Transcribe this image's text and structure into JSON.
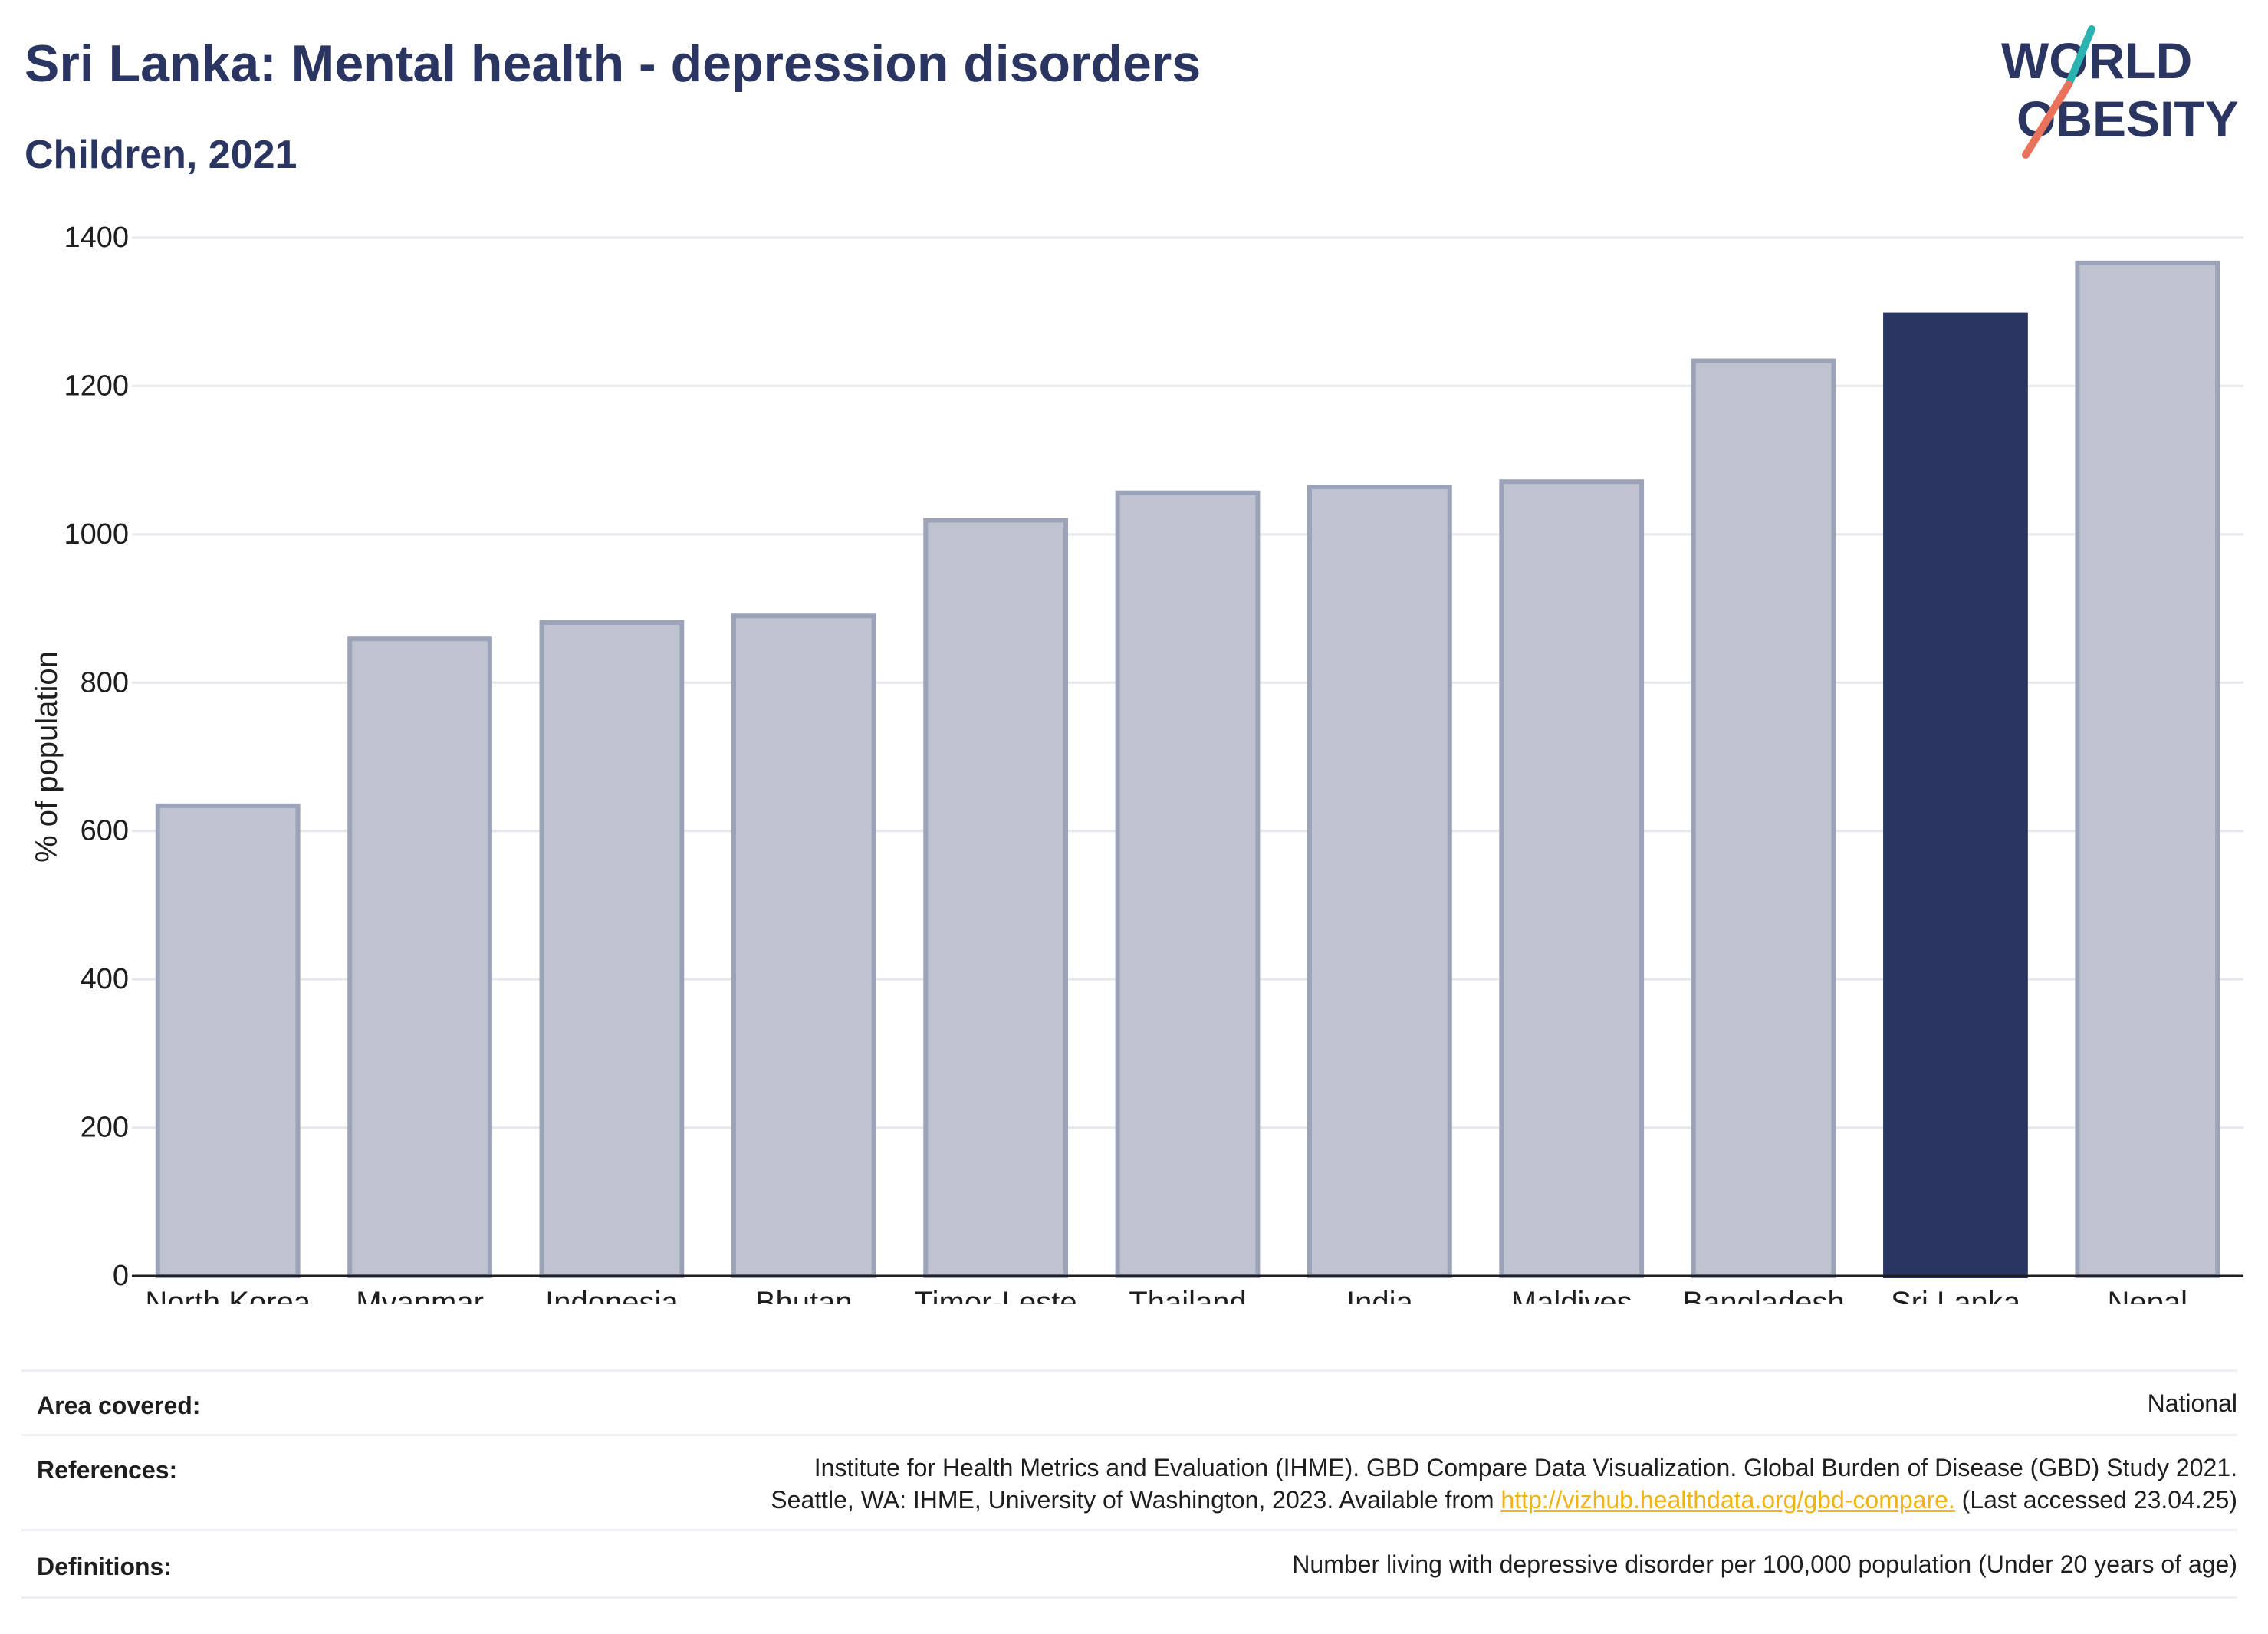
{
  "title": "Sri Lanka: Mental health - depression disorders",
  "subtitle": "Children, 2021",
  "logo": {
    "line1": "WORLD",
    "line2": "OBESITY"
  },
  "colors": {
    "highlight": "#2a3561",
    "bar": "#bfc3d0",
    "bar_stroke": "#9ca3b8",
    "grid": "#e6e8ee",
    "link": "#f1b313"
  },
  "chart_data": {
    "type": "bar",
    "categories": [
      "North Korea",
      "Myanmar",
      "Indonesia",
      "Bhutan",
      "Timor-Leste",
      "Thailand",
      "India",
      "Maldives",
      "Bangladesh",
      "Sri Lanka",
      "Nepal"
    ],
    "values": [
      634,
      859,
      881,
      890,
      1019,
      1056,
      1064,
      1071,
      1234,
      1296,
      1366
    ],
    "highlight": "Sri Lanka",
    "ylabel": "% of population",
    "ylim": [
      0,
      1400
    ],
    "yticks": [
      0,
      200,
      400,
      600,
      800,
      1000,
      1200,
      1400
    ],
    "grid": true
  },
  "info": {
    "area_label": "Area covered:",
    "area_value": "National",
    "references_label": "References:",
    "references_line1": "Institute for Health Metrics and Evaluation (IHME). GBD Compare Data Visualization. Global Burden of Disease (GBD) Study 2021.",
    "references_line2_pre": "Seattle, WA: IHME, University of Washington, 2023. Available from ",
    "references_link": "http://vizhub.healthdata.org/gbd-compare.",
    "references_line2_post": " (Last accessed 23.04.25)",
    "definitions_label": "Definitions:",
    "definitions_value": "Number living with depressive disorder per 100,000 population (Under 20 years of age)"
  }
}
